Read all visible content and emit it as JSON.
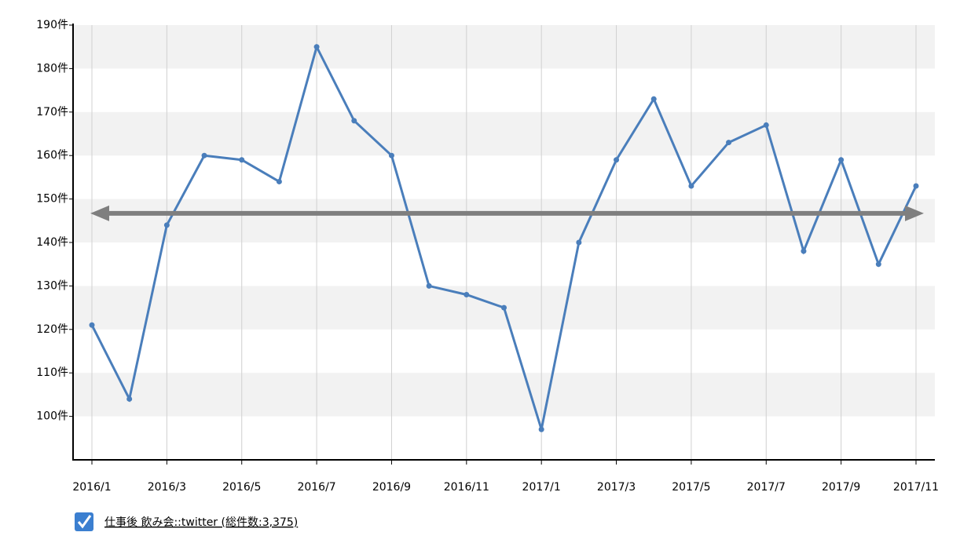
{
  "chart_data": {
    "type": "line",
    "categories": [
      "2016/1",
      null,
      "2016/3",
      null,
      "2016/5",
      null,
      "2016/7",
      null,
      "2016/9",
      null,
      "2016/11",
      null,
      "2017/1",
      null,
      "2017/3",
      null,
      "2017/5",
      null,
      "2017/7",
      null,
      "2017/9",
      null,
      "2017/11"
    ],
    "series": [
      {
        "name": "仕事後 飲み会::twitter (総件数:3,375)",
        "color": "#4a7ebb",
        "values": [
          121,
          104,
          144,
          160,
          159,
          154,
          185,
          168,
          160,
          130,
          128,
          125,
          97,
          140,
          159,
          173,
          153,
          163,
          167,
          138,
          159,
          135,
          153
        ]
      }
    ],
    "average_line": {
      "value": 146.7,
      "color": "#7f7f7f"
    },
    "ylim": [
      90,
      190
    ],
    "yticks": [
      {
        "value": 100,
        "label": "100件"
      },
      {
        "value": 110,
        "label": "110件"
      },
      {
        "value": 120,
        "label": "120件"
      },
      {
        "value": 130,
        "label": "130件"
      },
      {
        "value": 140,
        "label": "140件"
      },
      {
        "value": 150,
        "label": "150件"
      },
      {
        "value": 160,
        "label": "160件"
      },
      {
        "value": 170,
        "label": "170件"
      },
      {
        "value": 180,
        "label": "180件"
      },
      {
        "value": 190,
        "label": "190件"
      }
    ],
    "grid": true
  }
}
